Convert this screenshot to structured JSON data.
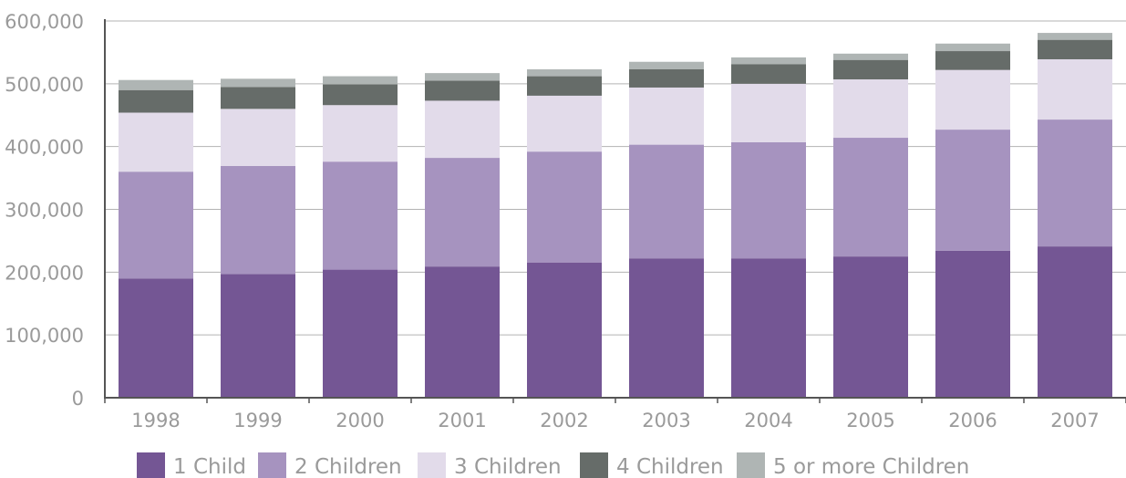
{
  "chart_data": {
    "type": "bar",
    "stacked": true,
    "categories": [
      "1998",
      "1999",
      "2000",
      "2001",
      "2002",
      "2003",
      "2004",
      "2005",
      "2006",
      "2007"
    ],
    "series": [
      {
        "name": "1 Child",
        "color": "#745694",
        "values": [
          190000,
          197000,
          204000,
          209000,
          215000,
          222000,
          222000,
          225000,
          234000,
          241000
        ]
      },
      {
        "name": "2 Children",
        "color": "#a693bf",
        "values": [
          170000,
          172000,
          172000,
          173000,
          177000,
          181000,
          185000,
          189000,
          193000,
          202000
        ]
      },
      {
        "name": "3 Children",
        "color": "#e2dbea",
        "values": [
          94000,
          91000,
          90000,
          91000,
          89000,
          91000,
          93000,
          93000,
          95000,
          96000
        ]
      },
      {
        "name": "4 Children",
        "color": "#666c69",
        "values": [
          36000,
          35000,
          33000,
          32000,
          31000,
          29000,
          31000,
          31000,
          30000,
          31000
        ]
      },
      {
        "name": "5 or more Children",
        "color": "#afb5b4",
        "values": [
          16000,
          13000,
          13000,
          12000,
          11000,
          12000,
          11000,
          10000,
          12000,
          11000
        ]
      }
    ],
    "yticks": [
      "0",
      "100,000",
      "200,000",
      "300,000",
      "400,000",
      "500,000",
      "600,000"
    ],
    "ylim": [
      0,
      600000
    ],
    "grid": true,
    "legend": "bottom"
  }
}
